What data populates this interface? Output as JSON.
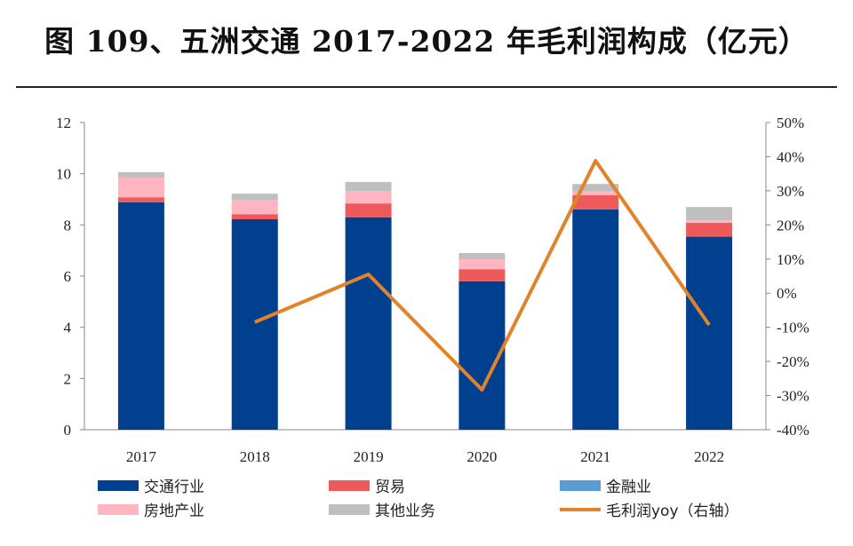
{
  "chart_data": {
    "type": "bar",
    "title": "图 109、五洲交通 2017-2022 年毛利润构成（亿元）",
    "categories": [
      "2017",
      "2018",
      "2019",
      "2020",
      "2021",
      "2022"
    ],
    "stacked": true,
    "ylim": [
      0,
      12
    ],
    "yticks": [
      "0",
      "2",
      "4",
      "6",
      "8",
      "10",
      "12"
    ],
    "y2lim": [
      -40,
      50
    ],
    "y2ticks": [
      "-40%",
      "-30%",
      "-20%",
      "-10%",
      "0%",
      "10%",
      "20%",
      "30%",
      "40%",
      "50%"
    ],
    "grid": false,
    "legend": "bottom",
    "series": [
      {
        "name": "交通行业",
        "color": "#00408F",
        "values": [
          8.88,
          8.22,
          8.3,
          5.8,
          8.61,
          7.54
        ]
      },
      {
        "name": "贸易",
        "color": "#EE5A5A",
        "values": [
          0.2,
          0.2,
          0.54,
          0.47,
          0.55,
          0.54
        ]
      },
      {
        "name": "金融业",
        "color": "#5B9BD5",
        "values": [
          0,
          0,
          0,
          0,
          0,
          0
        ]
      },
      {
        "name": "房地产业",
        "color": "#FFB6C1",
        "values": [
          0.77,
          0.56,
          0.48,
          0.39,
          0.14,
          0.1
        ]
      },
      {
        "name": "其他业务",
        "color": "#BFBFBF",
        "values": [
          0.21,
          0.24,
          0.36,
          0.24,
          0.3,
          0.52
        ]
      }
    ],
    "line_series": {
      "name": "毛利润yoy（右轴）",
      "color": "#E0832A",
      "axis": "right",
      "unit": "%",
      "values": [
        null,
        -8.5,
        5.5,
        -28.3,
        38.8,
        -9.3
      ]
    }
  }
}
